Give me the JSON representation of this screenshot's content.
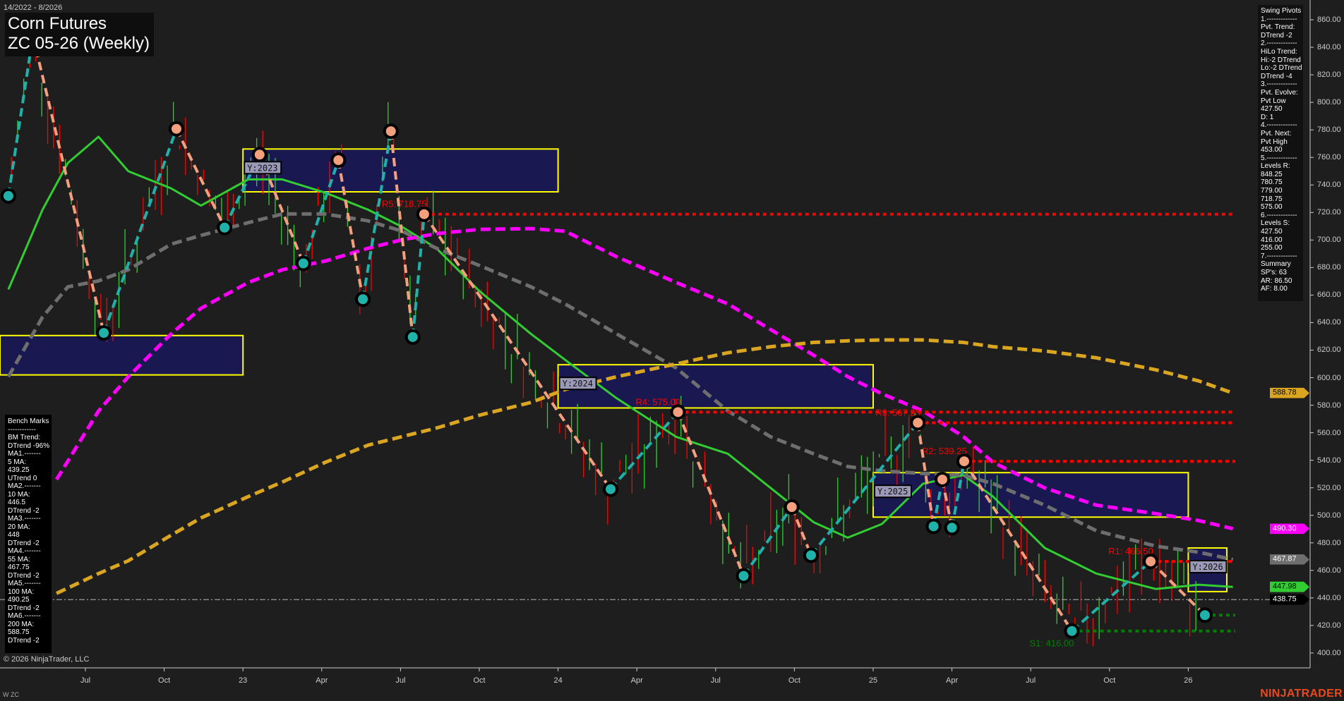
{
  "header": {
    "date_range": "14/2022 - 8/2026",
    "title_line1": "Corn Futures",
    "title_line2": "ZC 05-26 (Weekly)"
  },
  "swing_panel": {
    "lines": [
      "Swing Pivots",
      "1.-------------",
      "Pvt. Trend:",
      "DTrend -2",
      "2.-------------",
      "HiLo Trend:",
      "Hi:-2 DTrend",
      "Lo:-2 DTrend",
      "DTrend -4",
      "3.-------------",
      "Pvt. Evolve:",
      "Pvt Low",
      "427.50",
      "D: 1",
      "4.-------------",
      "Pvt. Next:",
      "Pvt High",
      "453.00",
      "5.-------------",
      "Levels R:",
      "848.25",
      "780.75",
      "779.00",
      "718.75",
      "575.00",
      "6.-------------",
      "Levels S:",
      "427.50",
      "416.00",
      "255.00",
      "7.-------------",
      "Summary",
      "SP's: 63",
      "AR: 86.50",
      "AF: 8.00"
    ]
  },
  "bench_panel": {
    "lines": [
      "Bench Marks",
      "------------",
      "BM Trend:",
      "DTrend -96%",
      "MA1.-------",
      "5 MA:",
      "439.25",
      "UTrend 0",
      "MA2.-------",
      "10 MA:",
      "446.5",
      "DTrend -2",
      "MA3.-------",
      "20 MA:",
      "448",
      "DTrend -2",
      "MA4.-------",
      "55 MA:",
      "467.75",
      "DTrend -2",
      "MA5.-------",
      "100 MA:",
      "490.25",
      "DTrend -2",
      "MA6.-------",
      "200 MA:",
      "588.75",
      "DTrend -2"
    ]
  },
  "footer": {
    "copyright": "© 2026 NinjaTrader, LLC",
    "instrument": "W ZC",
    "brand": "NINJATRADER"
  },
  "chart_data": {
    "type": "line",
    "ylim": [
      390,
      870
    ],
    "xlim": [
      "2022-03-25",
      "2026-05-10"
    ],
    "x_ticks": [
      {
        "date": "2022-07-01",
        "label": "Jul"
      },
      {
        "date": "2022-10-01",
        "label": "Oct"
      },
      {
        "date": "2023-01-01",
        "label": "23"
      },
      {
        "date": "2023-04-01",
        "label": "Apr"
      },
      {
        "date": "2023-07-01",
        "label": "Jul"
      },
      {
        "date": "2023-10-01",
        "label": "Oct"
      },
      {
        "date": "2024-01-01",
        "label": "24"
      },
      {
        "date": "2024-04-01",
        "label": "Apr"
      },
      {
        "date": "2024-07-01",
        "label": "Jul"
      },
      {
        "date": "2024-10-01",
        "label": "Oct"
      },
      {
        "date": "2025-01-01",
        "label": "25"
      },
      {
        "date": "2025-04-01",
        "label": "Apr"
      },
      {
        "date": "2025-07-01",
        "label": "Jul"
      },
      {
        "date": "2025-10-01",
        "label": "Oct"
      },
      {
        "date": "2026-01-01",
        "label": "26"
      }
    ],
    "y_ticks": [
      "400.00",
      "420.00",
      "440.00",
      "460.00",
      "480.00",
      "500.00",
      "520.00",
      "540.00",
      "560.00",
      "580.00",
      "600.00",
      "620.00",
      "640.00",
      "660.00",
      "680.00",
      "700.00",
      "720.00",
      "740.00",
      "760.00",
      "780.00",
      "800.00",
      "820.00",
      "840.00",
      "860.00"
    ],
    "price_tags": [
      {
        "value": "588.78",
        "color": "#daa520",
        "text_color": "#000"
      },
      {
        "value": "490.30",
        "color": "#ff00ff",
        "text_color": "#fff"
      },
      {
        "value": "467.87",
        "color": "#6e6e6e",
        "text_color": "#fff"
      },
      {
        "value": "447.98",
        "color": "#32cd32",
        "text_color": "#000"
      },
      {
        "value": "438.75",
        "color": "#000000",
        "text_color": "#fff"
      }
    ],
    "last_price": 438.75,
    "swing_pivots": [
      [
        "2022-04-03",
        732,
        "L"
      ],
      [
        "2022-05-01",
        848.25,
        "H"
      ],
      [
        "2022-07-22",
        632.5,
        "L"
      ],
      [
        "2022-10-15",
        780.75,
        "H"
      ],
      [
        "2022-12-10",
        709,
        "L"
      ],
      [
        "2023-01-20",
        762,
        "H"
      ],
      [
        "2023-03-10",
        683,
        "L"
      ],
      [
        "2023-04-20",
        758,
        "H"
      ],
      [
        "2023-05-18",
        657,
        "L"
      ],
      [
        "2023-06-20",
        779,
        "H"
      ],
      [
        "2023-07-15",
        629.5,
        "L"
      ],
      [
        "2023-07-28",
        718.75,
        "H"
      ],
      [
        "2024-03-01",
        519,
        "L"
      ],
      [
        "2024-05-18",
        575,
        "H"
      ],
      [
        "2024-08-03",
        456,
        "L"
      ],
      [
        "2024-09-28",
        506,
        "H"
      ],
      [
        "2024-10-20",
        471,
        "L"
      ],
      [
        "2025-02-22",
        567.25,
        "H"
      ],
      [
        "2025-03-10",
        492,
        "L"
      ],
      [
        "2025-03-20",
        526,
        "H"
      ],
      [
        "2025-03-31",
        491,
        "L"
      ],
      [
        "2025-04-15",
        539.25,
        "H"
      ],
      [
        "2025-08-18",
        416,
        "L"
      ],
      [
        "2025-11-18",
        466.5,
        "H"
      ],
      [
        "2026-01-20",
        427.5,
        "L"
      ]
    ],
    "series": [
      {
        "color": "#32cd32",
        "style": "solid",
        "points": [
          [
            "2022-04-03",
            664.1
          ],
          [
            "2022-05-12",
            722
          ],
          [
            "2022-06-11",
            756
          ],
          [
            "2022-07-16",
            775
          ],
          [
            "2022-08-20",
            750
          ],
          [
            "2022-10-09",
            737.5
          ],
          [
            "2022-11-13",
            725
          ],
          [
            "2023-01-07",
            744
          ],
          [
            "2023-02-16",
            744
          ],
          [
            "2023-04-05",
            734.4
          ],
          [
            "2023-05-24",
            722
          ],
          [
            "2023-07-03",
            709.5
          ],
          [
            "2023-08-12",
            694
          ],
          [
            "2023-10-01",
            663
          ],
          [
            "2023-11-30",
            631.8
          ],
          [
            "2024-01-09",
            613
          ],
          [
            "2024-03-08",
            585
          ],
          [
            "2024-05-16",
            557
          ],
          [
            "2024-07-15",
            544.7
          ],
          [
            "2024-09-04",
            519.8
          ],
          [
            "2024-10-23",
            495
          ],
          [
            "2024-12-02",
            483.8
          ],
          [
            "2025-01-11",
            493.7
          ],
          [
            "2025-02-28",
            523
          ],
          [
            "2025-04-14",
            529.2
          ],
          [
            "2025-05-18",
            513.6
          ],
          [
            "2025-07-17",
            476.3
          ],
          [
            "2025-09-16",
            457.7
          ],
          [
            "2025-11-24",
            446.5
          ],
          [
            "2026-01-13",
            449.6
          ],
          [
            "2026-02-22",
            447.98
          ]
        ]
      },
      {
        "color": "#6e6e6e",
        "style": "dashed",
        "points": [
          [
            "2022-04-03",
            600.7
          ],
          [
            "2022-05-12",
            644
          ],
          [
            "2022-06-11",
            666
          ],
          [
            "2022-07-16",
            670.3
          ],
          [
            "2022-08-20",
            678.4
          ],
          [
            "2022-10-09",
            697
          ],
          [
            "2022-11-13",
            703.3
          ],
          [
            "2023-01-07",
            712.6
          ],
          [
            "2023-02-16",
            718.9
          ],
          [
            "2023-04-05",
            718.9
          ],
          [
            "2023-05-24",
            713.9
          ],
          [
            "2023-07-03",
            706.4
          ],
          [
            "2023-08-12",
            694
          ],
          [
            "2023-10-01",
            681.5
          ],
          [
            "2023-11-30",
            666
          ],
          [
            "2024-01-09",
            653.6
          ],
          [
            "2024-03-08",
            631.8
          ],
          [
            "2024-05-16",
            607
          ],
          [
            "2024-07-15",
            575.8
          ],
          [
            "2024-09-04",
            557
          ],
          [
            "2024-10-23",
            544.7
          ],
          [
            "2024-12-02",
            535.4
          ],
          [
            "2025-01-11",
            532.3
          ],
          [
            "2025-02-28",
            530.4
          ],
          [
            "2025-04-14",
            529.2
          ],
          [
            "2025-05-18",
            523
          ],
          [
            "2025-07-17",
            507.4
          ],
          [
            "2025-09-16",
            488.8
          ],
          [
            "2025-11-24",
            477.6
          ],
          [
            "2026-01-13",
            473.2
          ],
          [
            "2026-02-22",
            467.87
          ]
        ]
      },
      {
        "color": "#ff00ff",
        "style": "dashed",
        "points": [
          [
            "2022-05-28",
            526
          ],
          [
            "2022-07-16",
            575.8
          ],
          [
            "2022-08-20",
            600.7
          ],
          [
            "2022-10-09",
            631.8
          ],
          [
            "2022-11-13",
            650.4
          ],
          [
            "2023-01-07",
            669.1
          ],
          [
            "2023-02-16",
            678.4
          ],
          [
            "2023-04-05",
            684.7
          ],
          [
            "2023-05-24",
            694
          ],
          [
            "2023-07-03",
            700.2
          ],
          [
            "2023-08-12",
            704.6
          ],
          [
            "2023-10-01",
            707.7
          ],
          [
            "2023-11-30",
            708.3
          ],
          [
            "2024-01-09",
            706.4
          ],
          [
            "2024-03-08",
            687.8
          ],
          [
            "2024-05-16",
            669.1
          ],
          [
            "2024-07-15",
            653.6
          ],
          [
            "2024-09-04",
            634.9
          ],
          [
            "2024-10-23",
            616.3
          ],
          [
            "2024-12-02",
            600.7
          ],
          [
            "2025-01-11",
            588.3
          ],
          [
            "2025-02-28",
            575.8
          ],
          [
            "2025-04-14",
            557.2
          ],
          [
            "2025-05-18",
            538.5
          ],
          [
            "2025-07-17",
            519.9
          ],
          [
            "2025-09-16",
            507.4
          ],
          [
            "2025-11-24",
            501.2
          ],
          [
            "2026-01-13",
            496.2
          ],
          [
            "2026-02-22",
            490.3
          ]
        ]
      },
      {
        "color": "#daa520",
        "style": "dashed",
        "points": [
          [
            "2022-05-28",
            443.3
          ],
          [
            "2022-07-16",
            457.7
          ],
          [
            "2022-08-20",
            467
          ],
          [
            "2022-10-09",
            485.6
          ],
          [
            "2022-11-13",
            498.1
          ],
          [
            "2023-01-07",
            513.6
          ],
          [
            "2023-02-16",
            524.2
          ],
          [
            "2023-04-05",
            538.5
          ],
          [
            "2023-05-24",
            551
          ],
          [
            "2023-07-03",
            557.2
          ],
          [
            "2023-08-12",
            563.4
          ],
          [
            "2023-10-01",
            572.7
          ],
          [
            "2023-11-30",
            582
          ],
          [
            "2024-01-09",
            591.4
          ],
          [
            "2024-03-08",
            600.7
          ],
          [
            "2024-05-16",
            610
          ],
          [
            "2024-07-15",
            618.1
          ],
          [
            "2024-09-04",
            622.5
          ],
          [
            "2024-10-23",
            625.6
          ],
          [
            "2024-12-02",
            626.8
          ],
          [
            "2025-01-11",
            627.4
          ],
          [
            "2025-02-28",
            627.4
          ],
          [
            "2025-04-14",
            625.6
          ],
          [
            "2025-05-18",
            622.5
          ],
          [
            "2025-07-17",
            619.4
          ],
          [
            "2025-09-16",
            614.4
          ],
          [
            "2025-11-24",
            605.7
          ],
          [
            "2026-01-13",
            597.6
          ],
          [
            "2026-02-22",
            588.78
          ]
        ]
      }
    ],
    "year_boxes": [
      {
        "label": "",
        "start": "2022-01-01",
        "end": "2022-12-31",
        "high": 630.6,
        "low": 602
      },
      {
        "label": "Y:2023",
        "start": "2023-01-01",
        "end": "2023-12-31",
        "high": 766.1,
        "low": 735
      },
      {
        "label": "Y:2024",
        "start": "2024-01-01",
        "end": "2024-12-31",
        "high": 609.4,
        "low": 578
      },
      {
        "label": "Y:2025",
        "start": "2025-01-01",
        "end": "2025-12-31",
        "high": 531,
        "low": 498.7
      },
      {
        "label": "Y:2026",
        "start": "2026-01-01",
        "end": "2026-02-15",
        "high": 476.3,
        "low": 444.6
      }
    ],
    "levels": [
      {
        "label": "R5: 718.75",
        "value": 718.75,
        "start": "2023-07-28",
        "type": "R"
      },
      {
        "label": "R4: 575.00",
        "value": 575,
        "start": "2024-05-18",
        "type": "R"
      },
      {
        "label": "R3: 567.25",
        "value": 567.25,
        "start": "2025-02-22",
        "type": "R"
      },
      {
        "label": "R2: 539.25",
        "value": 539.25,
        "start": "2025-04-15",
        "type": "R"
      },
      {
        "label": "R1: 466.50",
        "value": 466.5,
        "start": "2025-11-18",
        "type": "R"
      },
      {
        "label": "S1: 416.00",
        "value": 416,
        "start": "2025-08-18",
        "type": "S"
      },
      {
        "label": "",
        "value": 427.5,
        "start": "2026-01-20",
        "type": "S"
      }
    ]
  }
}
